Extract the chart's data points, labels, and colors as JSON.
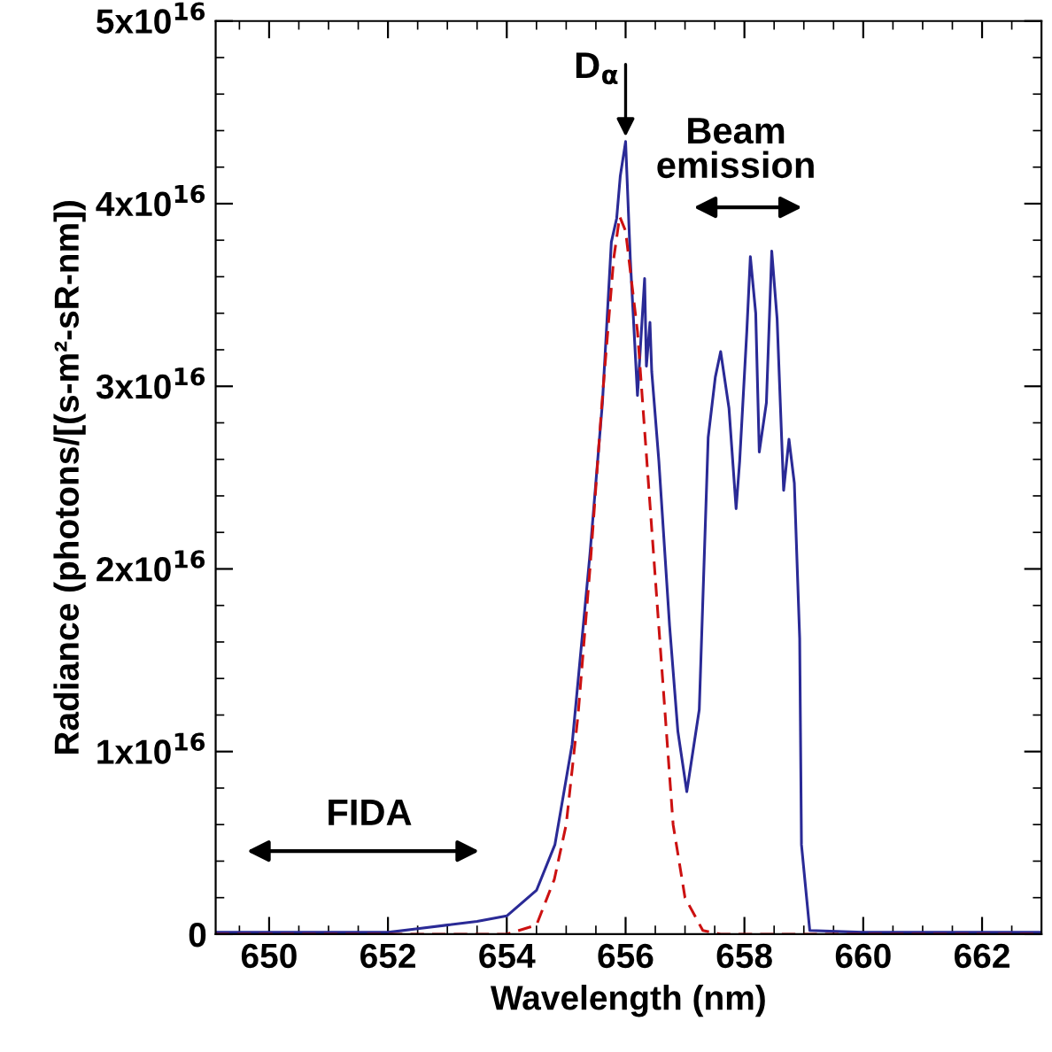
{
  "chart_data": {
    "type": "line",
    "xlabel": "Wavelength (nm)",
    "ylabel": "Radiance (photons/[(s-m²-sR-nm])",
    "xlim": [
      649.1,
      663
    ],
    "xticks": [
      650,
      652,
      654,
      656,
      658,
      660,
      662
    ],
    "ylim": [
      0,
      5e+16
    ],
    "yticks": [
      {
        "value": 0,
        "label": "0"
      },
      {
        "value": 1e+16,
        "label": "1x10$^{16}$"
      },
      {
        "value": 2e+16,
        "label": "2x10$^{16}$"
      },
      {
        "value": 3e+16,
        "label": "3x10$^{16}$"
      },
      {
        "value": 4e+16,
        "label": "4x10$^{16}$"
      },
      {
        "value": 5e+16,
        "label": "5x10$^{16}$"
      }
    ],
    "grid": false,
    "legend": false,
    "series": [
      {
        "color": "#2a2a96",
        "line_style": "solid",
        "x": [
          649.1,
          650,
          651,
          652,
          652.5,
          653,
          653.5,
          654,
          654.5,
          654.81,
          655.1,
          655.4,
          655.61,
          655.76,
          655.85,
          655.91,
          656.0,
          656.08,
          656.2,
          656.32,
          656.35,
          656.41,
          656.44,
          656.56,
          656.74,
          656.88,
          657.03,
          657.24,
          657.39,
          657.51,
          657.6,
          657.74,
          657.86,
          657.92,
          658.04,
          658.1,
          658.19,
          658.25,
          658.37,
          658.46,
          658.55,
          658.66,
          658.75,
          658.84,
          658.93,
          658.96,
          659.1,
          660,
          661,
          662,
          663
        ],
        "values": [
          100000000000000.0,
          100000000000000.0,
          100000000000000.0,
          100000000000000.0,
          300000000000000.0,
          500000000000000.0,
          700000000000000.0,
          1000000000000000.0,
          2400000000000000.0,
          4900000000000000.0,
          1.04e+16,
          2.08e+16,
          2.91e+16,
          3.79e+16,
          3.92e+16,
          4.15e+16,
          4.34e+16,
          3.69e+16,
          2.95e+16,
          3.59e+16,
          3.11e+16,
          3.35e+16,
          3.08e+16,
          2.59e+16,
          1.69e+16,
          1.11e+16,
          7800000000000000.0,
          1.23e+16,
          2.72e+16,
          3.05e+16,
          3.19e+16,
          2.88e+16,
          2.33e+16,
          2.59e+16,
          3.3e+16,
          3.71e+16,
          3.4e+16,
          2.64e+16,
          2.91e+16,
          3.74e+16,
          3.37e+16,
          2.43e+16,
          2.71e+16,
          2.47e+16,
          1.62e+16,
          4900000000000000.0,
          200000000000000.0,
          100000000000000.0,
          100000000000000.0,
          100000000000000.0,
          100000000000000.0
        ]
      },
      {
        "color": "#cc1111",
        "line_style": "dashed",
        "x": [
          649.1,
          654.0,
          654.5,
          654.8,
          655.0,
          655.2,
          655.4,
          655.6,
          655.8,
          655.9,
          656.0,
          656.2,
          656.4,
          656.6,
          656.8,
          657.0,
          657.3,
          657.6,
          663
        ],
        "values": [
          0,
          0,
          500000000000000.0,
          3000000000000000.0,
          6000000000000000.0,
          1.2e+16,
          2e+16,
          2.9e+16,
          3.7e+16,
          3.93e+16,
          3.85e+16,
          3.3e+16,
          2.4e+16,
          1.5e+16,
          6000000000000000.0,
          2000000000000000.0,
          200000000000000.0,
          0,
          0
        ]
      }
    ],
    "annotations": [
      {
        "text": "D$_{α}$",
        "x": 656.0,
        "y": 4.34e+16
      },
      "Beam\nemission",
      "FIDA"
    ]
  }
}
